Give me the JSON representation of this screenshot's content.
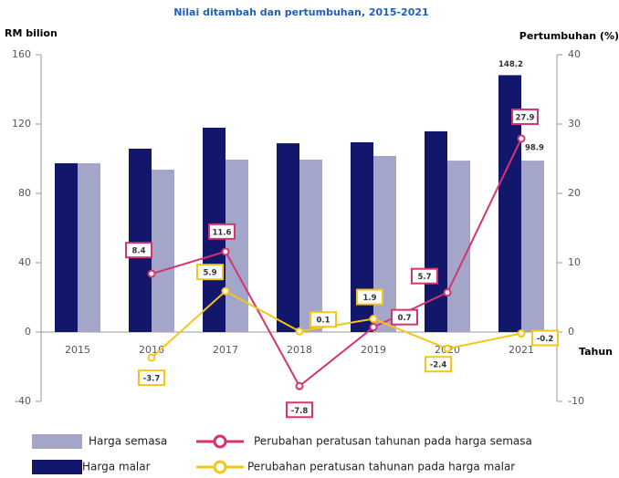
{
  "chart_data": {
    "type": "bar-line",
    "title": "Nilai ditambah dan pertumbuhan, 2015-2021",
    "y_label": "RM bilion",
    "y2_label": "Pertumbuhan (%)",
    "x_label": "Tahun",
    "categories": [
      "2015",
      "2016",
      "2017",
      "2018",
      "2019",
      "2020",
      "2021"
    ],
    "ylim": [
      -40,
      160
    ],
    "yticks": [
      -40,
      0,
      40,
      80,
      120,
      160
    ],
    "y2lim": [
      -10,
      40
    ],
    "y2ticks": [
      -10,
      0,
      10,
      20,
      30,
      40
    ],
    "series": [
      {
        "name": "Harga malar",
        "type": "bar",
        "color": "#13176b",
        "values": [
          97.4,
          105.8,
          117.9,
          108.9,
          109.5,
          115.8,
          148.2
        ],
        "value_labels": [
          null,
          null,
          null,
          null,
          null,
          null,
          "148.2"
        ]
      },
      {
        "name": "Harga semasa",
        "type": "bar",
        "color": "#a3a6c9",
        "values": [
          97.4,
          93.7,
          99.5,
          99.5,
          101.6,
          98.9,
          98.9
        ],
        "value_labels": [
          null,
          null,
          null,
          null,
          null,
          null,
          "98.9"
        ]
      },
      {
        "name": "Perubahan peratusan tahunan pada harga semasa",
        "type": "line",
        "axis": "y2",
        "color": "#d6336f",
        "values": [
          null,
          8.4,
          11.6,
          -7.8,
          0.7,
          5.7,
          27.9
        ]
      },
      {
        "name": "Perubahan peratusan tahunan pada harga malar",
        "type": "line",
        "axis": "y2",
        "color": "#f5c518",
        "values": [
          null,
          -3.7,
          5.9,
          0.1,
          1.9,
          -2.4,
          -0.2
        ]
      }
    ]
  }
}
